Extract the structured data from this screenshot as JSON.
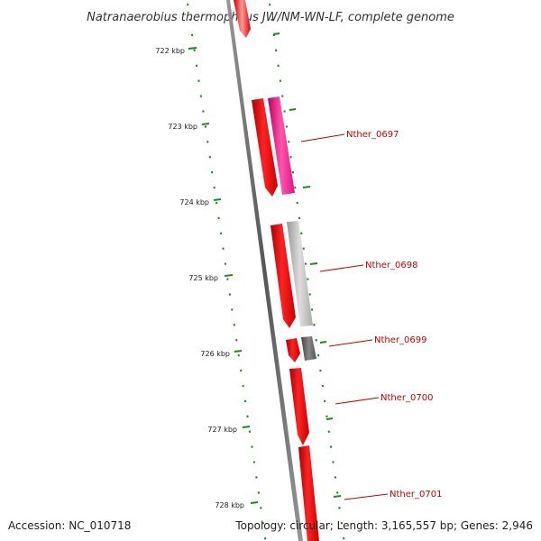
{
  "title": "Natranaerobius thermophilus JW/NM-WN-LF, complete genome",
  "footer": {
    "accession": "Accession: NC_010718",
    "stats": "Topology: circular; Length: 3,165,557 bp; Genes: 2,946"
  },
  "ticks": [
    {
      "label": "722 kbp"
    },
    {
      "label": "723 kbp"
    },
    {
      "label": "724 kbp"
    },
    {
      "label": "725 kbp"
    },
    {
      "label": "726 kbp"
    },
    {
      "label": "727 kbp"
    },
    {
      "label": "728 kbp"
    }
  ],
  "genes": [
    {
      "label": "Nther_0697"
    },
    {
      "label": "Nther_0698"
    },
    {
      "label": "Nther_0699"
    },
    {
      "label": "Nther_0700"
    },
    {
      "label": "Nther_0701"
    }
  ],
  "colors": {
    "cds": "#ff0000",
    "gene_label": "#cc0000",
    "pink_feature": "#ff3399",
    "light_gray_feature": "#bbbbbb",
    "dark_gray_feature": "#666666",
    "backbone": "#888888",
    "tick_marks": "#1a8c1a"
  }
}
